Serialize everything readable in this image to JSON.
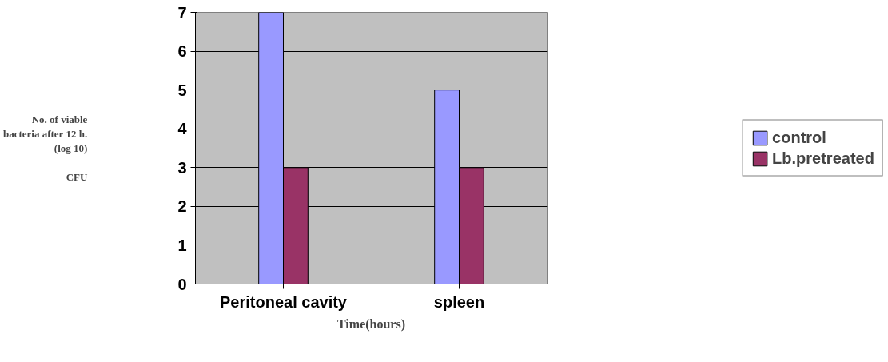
{
  "chart_data": {
    "type": "bar",
    "xlabel": "Time(hours)",
    "ylabel": "No. of viable\nbacteria after 12 h.\n(log 10)\n\nCFU",
    "categories": [
      "Peritoneal cavity",
      "spleen"
    ],
    "series": [
      {
        "name": "control",
        "color": "#9999ff",
        "values": [
          7,
          5
        ]
      },
      {
        "name": "Lb.pretreated",
        "color": "#993366",
        "values": [
          3,
          3
        ]
      }
    ],
    "ylim": [
      0,
      7
    ],
    "yticks": [
      0,
      1,
      2,
      3,
      4,
      5,
      6,
      7
    ],
    "grid": "y",
    "legend": "right"
  }
}
